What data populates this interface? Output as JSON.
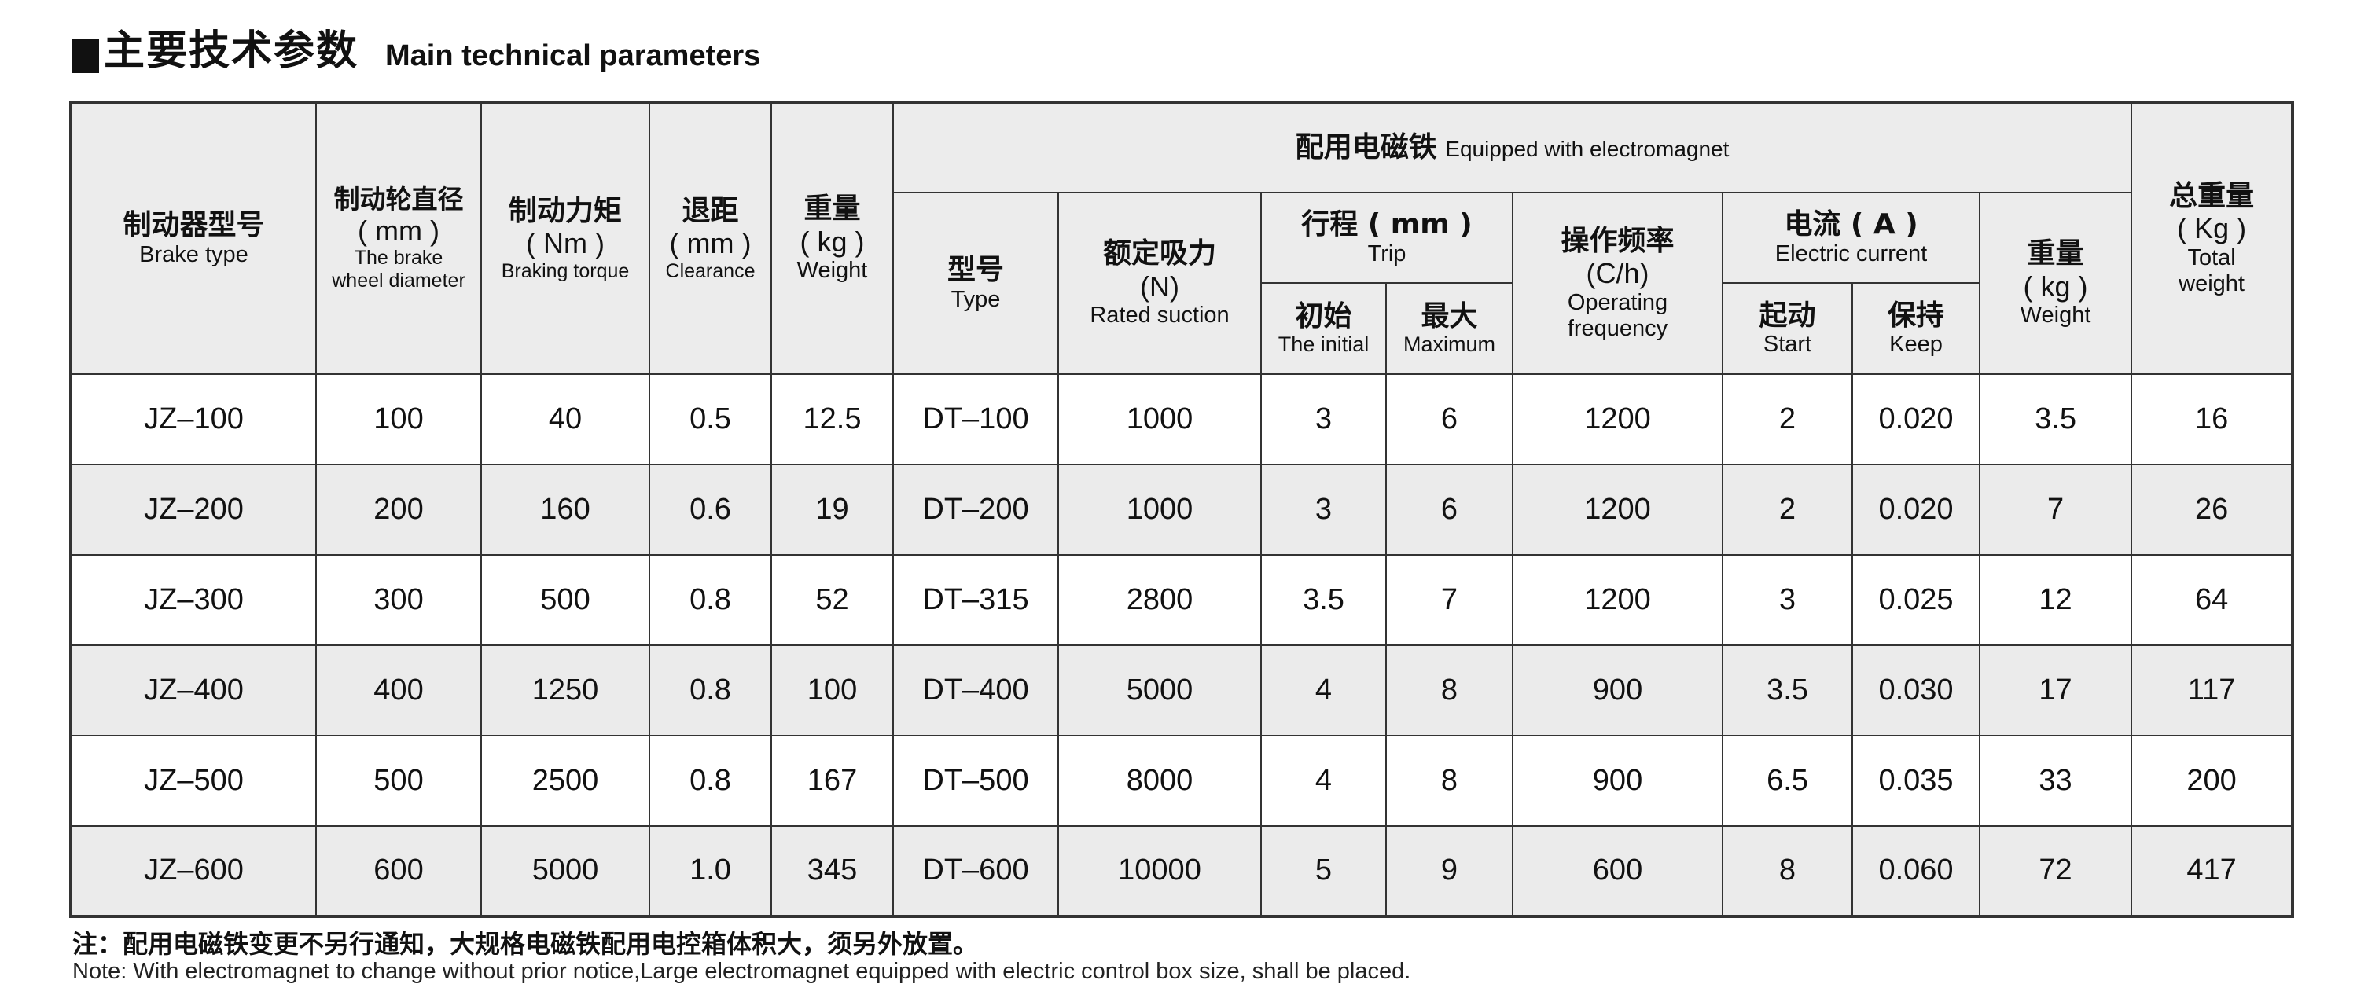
{
  "title": {
    "cn": "主要技术参数",
    "en": "Main technical parameters"
  },
  "header": {
    "brake_type": {
      "cn": "制动器型号",
      "en": "Brake type"
    },
    "wheel_diameter": {
      "cn": "制动轮直径",
      "unit": "( mm )",
      "en1": "The brake",
      "en2": "wheel diameter"
    },
    "torque": {
      "cn": "制动力矩",
      "unit": "( Nm )",
      "en": "Braking torque"
    },
    "clearance": {
      "cn": "退距",
      "unit": "( mm )",
      "en": "Clearance"
    },
    "weight": {
      "cn": "重量",
      "unit": "( kg )",
      "en": "Weight"
    },
    "electromagnet": {
      "cn": "配用电磁铁",
      "en": "Equipped with electromagnet"
    },
    "em_type": {
      "cn": "型号",
      "en": "Type"
    },
    "rated_suction": {
      "cn": "额定吸力",
      "unit": "(N)",
      "en": "Rated suction"
    },
    "trip": {
      "cn": "行程 ( mm )",
      "en": "Trip"
    },
    "trip_initial": {
      "cn": "初始",
      "en": "The initial"
    },
    "trip_max": {
      "cn": "最大",
      "en": "Maximum"
    },
    "frequency": {
      "cn": "操作频率",
      "unit": "(C/h)",
      "en1": "Operating",
      "en2": "frequency"
    },
    "current": {
      "cn": "电流 ( A )",
      "en": "Electric current"
    },
    "current_start": {
      "cn": "起动",
      "en": "Start"
    },
    "current_keep": {
      "cn": "保持",
      "en": "Keep"
    },
    "em_weight": {
      "cn": "重量",
      "unit": "( kg )",
      "en": "Weight"
    },
    "total_weight": {
      "cn": "总重量",
      "unit": "( Kg )",
      "en1": "Total",
      "en2": "weight"
    }
  },
  "rows": [
    [
      "JZ–100",
      "100",
      "40",
      "0.5",
      "12.5",
      "DT–100",
      "1000",
      "3",
      "6",
      "1200",
      "2",
      "0.020",
      "3.5",
      "16"
    ],
    [
      "JZ–200",
      "200",
      "160",
      "0.6",
      "19",
      "DT–200",
      "1000",
      "3",
      "6",
      "1200",
      "2",
      "0.020",
      "7",
      "26"
    ],
    [
      "JZ–300",
      "300",
      "500",
      "0.8",
      "52",
      "DT–315",
      "2800",
      "3.5",
      "7",
      "1200",
      "3",
      "0.025",
      "12",
      "64"
    ],
    [
      "JZ–400",
      "400",
      "1250",
      "0.8",
      "100",
      "DT–400",
      "5000",
      "4",
      "8",
      "900",
      "3.5",
      "0.030",
      "17",
      "117"
    ],
    [
      "JZ–500",
      "500",
      "2500",
      "0.8",
      "167",
      "DT–500",
      "8000",
      "4",
      "8",
      "900",
      "6.5",
      "0.035",
      "33",
      "200"
    ],
    [
      "JZ–600",
      "600",
      "5000",
      "1.0",
      "345",
      "DT–600",
      "10000",
      "5",
      "9",
      "600",
      "8",
      "0.060",
      "72",
      "417"
    ]
  ],
  "notes": {
    "cn": "注：配用电磁铁变更不另行通知，大规格电磁铁配用电控箱体积大，须另外放置。",
    "en": "Note: With electromagnet to change without prior notice,Large electromagnet equipped with electric control box size, shall be placed."
  }
}
